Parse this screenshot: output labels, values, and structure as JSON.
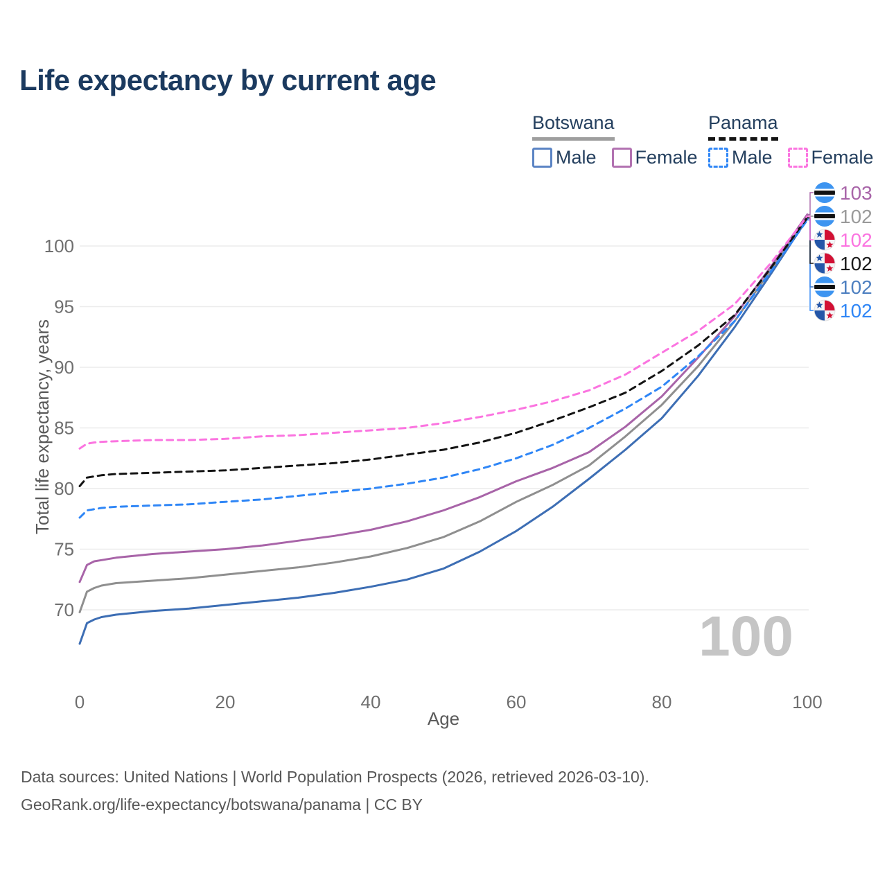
{
  "title": "Life expectancy by current age",
  "legend": {
    "botswana": {
      "label": "Botswana",
      "line_style": "solid",
      "underline_color": "#9e9e9e",
      "male": {
        "label": "Male",
        "box_color": "#5b84c4"
      },
      "female": {
        "label": "Female",
        "box_color": "#b272b1"
      }
    },
    "panama": {
      "label": "Panama",
      "line_style": "dashed",
      "underline_color": "#141414",
      "male": {
        "label": "Male",
        "box_color": "#2f86f6"
      },
      "female": {
        "label": "Female",
        "box_color": "#fb74e0"
      }
    }
  },
  "footer": {
    "line1": "Data sources: United Nations | World Population Prospects (2026, retrieved 2026-03-10).",
    "line2": "GeoRank.org/life-expectancy/botswana/panama | CC BY"
  },
  "chart_data": {
    "type": "line",
    "title": "Life expectancy by current age",
    "xlabel": "Age",
    "ylabel": "Total life expectancy, years",
    "xlim": [
      0,
      100
    ],
    "ylim": [
      66,
      103.5
    ],
    "xticks": [
      0,
      20,
      40,
      60,
      80,
      100
    ],
    "yticks": [
      70,
      75,
      80,
      85,
      90,
      95,
      100
    ],
    "grid": "horizontal-only",
    "legend_position": "top-right",
    "hover_age_watermark": "100",
    "ages": [
      0,
      1,
      2,
      3,
      5,
      10,
      15,
      20,
      25,
      30,
      35,
      40,
      45,
      50,
      55,
      60,
      65,
      70,
      75,
      80,
      85,
      90,
      95,
      100
    ],
    "series": [
      {
        "id": "botswana-male",
        "name": "Botswana Male",
        "country": "Botswana",
        "sex": "Male",
        "color": "#3d6eb4",
        "dash": "solid",
        "flag": "botswana",
        "end_label": "102",
        "label_color": "#4d7fc0",
        "row_index": 4,
        "values": [
          67.2,
          68.9,
          69.2,
          69.4,
          69.6,
          69.9,
          70.1,
          70.4,
          70.7,
          71.0,
          71.4,
          71.9,
          72.5,
          73.4,
          74.8,
          76.5,
          78.5,
          80.8,
          83.2,
          85.8,
          89.3,
          93.3,
          97.7,
          102.25
        ]
      },
      {
        "id": "botswana-both",
        "name": "Botswana (both sexes)",
        "country": "Botswana",
        "sex": "Both",
        "color": "#8f8f8f",
        "dash": "solid",
        "flag": "botswana",
        "end_label": "102",
        "label_color": "#9a9a9a",
        "row_index": 1,
        "values": [
          69.8,
          71.5,
          71.8,
          72.0,
          72.2,
          72.4,
          72.6,
          72.9,
          73.2,
          73.5,
          73.9,
          74.4,
          75.1,
          76.0,
          77.3,
          78.9,
          80.3,
          81.9,
          84.3,
          86.9,
          90.1,
          93.8,
          98.0,
          102.5
        ]
      },
      {
        "id": "botswana-female",
        "name": "Botswana Female",
        "country": "Botswana",
        "sex": "Female",
        "color": "#a864a8",
        "dash": "solid",
        "flag": "botswana",
        "end_label": "103",
        "label_color": "#a864a8",
        "row_index": 0,
        "values": [
          72.3,
          73.7,
          74.0,
          74.1,
          74.3,
          74.6,
          74.8,
          75.0,
          75.3,
          75.7,
          76.1,
          76.6,
          77.3,
          78.2,
          79.3,
          80.6,
          81.7,
          83.0,
          85.1,
          87.6,
          90.8,
          94.2,
          98.3,
          102.6
        ]
      },
      {
        "id": "panama-male",
        "name": "Panama Male",
        "country": "Panama",
        "sex": "Male",
        "color": "#2f86f6",
        "dash": "dashed",
        "flag": "panama",
        "end_label": "102",
        "label_color": "#2f86f6",
        "row_index": 5,
        "values": [
          77.6,
          78.2,
          78.3,
          78.4,
          78.5,
          78.6,
          78.7,
          78.9,
          79.1,
          79.4,
          79.7,
          80.0,
          80.4,
          80.9,
          81.6,
          82.5,
          83.6,
          85.0,
          86.6,
          88.4,
          90.9,
          93.8,
          97.9,
          102.15
        ]
      },
      {
        "id": "panama-both",
        "name": "Panama (both sexes)",
        "country": "Panama",
        "sex": "Both",
        "color": "#141414",
        "dash": "dashed",
        "flag": "panama",
        "end_label": "102",
        "label_color": "#1a1a1a",
        "row_index": 3,
        "values": [
          80.2,
          80.9,
          81.0,
          81.1,
          81.2,
          81.3,
          81.4,
          81.5,
          81.7,
          81.9,
          82.1,
          82.4,
          82.8,
          83.2,
          83.8,
          84.6,
          85.6,
          86.7,
          87.9,
          89.7,
          91.8,
          94.3,
          98.2,
          102.35
        ]
      },
      {
        "id": "panama-female",
        "name": "Panama Female",
        "country": "Panama",
        "sex": "Female",
        "color": "#fb74e0",
        "dash": "dashed",
        "flag": "panama",
        "end_label": "102",
        "label_color": "#fb74e0",
        "row_index": 2,
        "values": [
          83.3,
          83.7,
          83.8,
          83.85,
          83.9,
          84.0,
          84.0,
          84.1,
          84.3,
          84.4,
          84.6,
          84.8,
          85.0,
          85.4,
          85.9,
          86.5,
          87.2,
          88.1,
          89.4,
          91.2,
          93.0,
          95.2,
          98.6,
          102.45
        ]
      }
    ]
  }
}
